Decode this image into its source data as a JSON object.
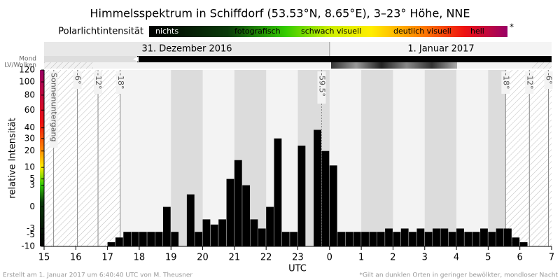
{
  "chart_data": {
    "type": "bar",
    "title": "Himmelsspektrum in Schiffdorf (53.53°N, 8.65°E), 3–23° Höhe, NNE",
    "legend_title": "Polarlichtintensität",
    "legend_items": [
      "nichts",
      "fotografisch",
      "schwach visuell",
      "deutlich visuell",
      "hell"
    ],
    "legend_note": "*",
    "dates": [
      "31. Dezember 2016",
      "1. Januar 2017"
    ],
    "row_labels": [
      "Mond",
      "LV/Wolken"
    ],
    "ylabel": "relative Intensität",
    "xlabel": "UTC",
    "yscale": "sqrt",
    "grid": false,
    "color": "#000000",
    "ylim": [
      -10,
      120
    ],
    "yticks": [
      -10,
      -5,
      -3,
      0,
      3,
      5,
      10,
      20,
      30,
      40,
      60,
      80,
      100,
      120
    ],
    "xlim": [
      15,
      31
    ],
    "xticks": [
      15,
      16,
      17,
      18,
      19,
      20,
      21,
      22,
      23,
      {
        "value": 24,
        "label": "0"
      },
      {
        "value": 25,
        "label": "1"
      },
      {
        "value": 26,
        "label": "2"
      },
      {
        "value": 27,
        "label": "3"
      },
      {
        "value": 28,
        "label": "4"
      },
      {
        "value": 29,
        "label": "5"
      },
      {
        "value": 30,
        "label": "6"
      },
      {
        "value": 31,
        "label": "7"
      }
    ],
    "bar_width": 0.25,
    "x": [
      16.5,
      16.75,
      17,
      17.25,
      17.5,
      17.75,
      18,
      18.25,
      18.5,
      18.75,
      19,
      19.25,
      19.5,
      19.75,
      20,
      20.25,
      20.5,
      20.75,
      21,
      21.25,
      21.5,
      21.75,
      22,
      22.25,
      22.5,
      22.75,
      23,
      23.25,
      23.5,
      23.75,
      24,
      24.25,
      24.5,
      24.75,
      25,
      25.25,
      25.5,
      25.75,
      26,
      26.25,
      26.5,
      26.75,
      27,
      27.25,
      27.5,
      27.75,
      28,
      28.25,
      28.5,
      28.75,
      29,
      29.25,
      29.5,
      29.75,
      30,
      30.25,
      30.5
    ],
    "values": [
      -10,
      -10,
      -8,
      -6,
      -4,
      -4,
      -4,
      -4,
      -4,
      0,
      -4,
      null,
      1,
      -4,
      -1,
      -2,
      -1,
      5,
      14,
      3,
      -1,
      -3,
      0,
      30,
      -4,
      -4,
      24,
      null,
      38,
      20,
      11,
      -4,
      -4,
      -4,
      -4,
      -4,
      -4,
      -3,
      -4,
      -3,
      -4,
      -3,
      -4,
      -3,
      -3,
      -4,
      -3,
      -4,
      -4,
      -3,
      -4,
      -3,
      -3,
      -6,
      -8,
      -10,
      -10
    ],
    "annotations": [
      {
        "x": 15.3,
        "label": "Sonnenuntergang"
      },
      {
        "x": 16.05,
        "label": "-6°"
      },
      {
        "x": 16.7,
        "label": "-12°"
      },
      {
        "x": 17.4,
        "label": "-18°"
      },
      {
        "x": 23.75,
        "label": "-59.5°"
      },
      {
        "x": 29.55,
        "label": "-18°"
      },
      {
        "x": 30.3,
        "label": "-12°"
      },
      {
        "x": 30.9,
        "label": "-6°"
      }
    ],
    "footer_left": "Erstellt am 1. Januar 2017 um 6:40:40 UTC von M. Theusner",
    "footer_right": "*Gilt an dunklen Orten in geringer bewölkter, mondloser Nacht"
  }
}
